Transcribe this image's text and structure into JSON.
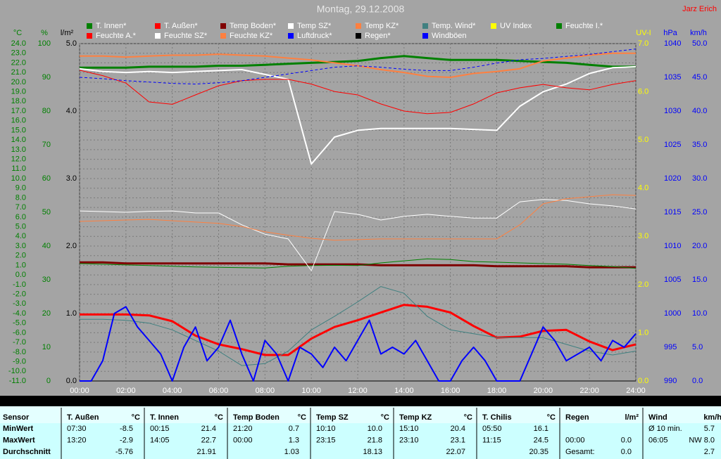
{
  "chart_data": {
    "type": "line",
    "title": "Montag, 29.12.2008",
    "author": "Jarz Erich",
    "grid": true,
    "xlim": [
      0,
      24
    ],
    "xticks": [
      {
        "value": 0,
        "label": "00:00"
      },
      {
        "value": 2,
        "label": "02:00"
      },
      {
        "value": 4,
        "label": "04:00"
      },
      {
        "value": 6,
        "label": "06:00"
      },
      {
        "value": 8,
        "label": "08:00"
      },
      {
        "value": 10,
        "label": "10:00"
      },
      {
        "value": 12,
        "label": "12:00"
      },
      {
        "value": 14,
        "label": "14:00"
      },
      {
        "value": 16,
        "label": "16:00"
      },
      {
        "value": 18,
        "label": "18:00"
      },
      {
        "value": 20,
        "label": "20:00"
      },
      {
        "value": 22,
        "label": "22:00"
      },
      {
        "value": 24,
        "label": "24:00"
      }
    ],
    "x": [
      0,
      1,
      2,
      3,
      4,
      5,
      6,
      7,
      8,
      9,
      10,
      11,
      12,
      13,
      14,
      15,
      16,
      17,
      18,
      19,
      20,
      21,
      22,
      23,
      24
    ],
    "axes": [
      {
        "id": "c",
        "label": "°C",
        "color": "#008000",
        "lim": [
          -11,
          24
        ],
        "ticks": [
          {
            "value": 24,
            "label": "24.0"
          },
          {
            "value": 23,
            "label": "23.0"
          },
          {
            "value": 22,
            "label": "22.0"
          },
          {
            "value": 21,
            "label": "21.0"
          },
          {
            "value": 20,
            "label": "20.0"
          },
          {
            "value": 19,
            "label": "19.0"
          },
          {
            "value": 18,
            "label": "18.0"
          },
          {
            "value": 17,
            "label": "17.0"
          },
          {
            "value": 16,
            "label": "16.0"
          },
          {
            "value": 15,
            "label": "15.0"
          },
          {
            "value": 14,
            "label": "14.0"
          },
          {
            "value": 13,
            "label": "13.0"
          },
          {
            "value": 12,
            "label": "12.0"
          },
          {
            "value": 11,
            "label": "11.0"
          },
          {
            "value": 10,
            "label": "10.0"
          },
          {
            "value": 9,
            "label": "9.0"
          },
          {
            "value": 8,
            "label": "8.0"
          },
          {
            "value": 7,
            "label": "7.0"
          },
          {
            "value": 6,
            "label": "6.0"
          },
          {
            "value": 5,
            "label": "5.0"
          },
          {
            "value": 4,
            "label": "4.0"
          },
          {
            "value": 3,
            "label": "3.0"
          },
          {
            "value": 2,
            "label": "2.0"
          },
          {
            "value": 1,
            "label": "1.0"
          },
          {
            "value": 0,
            "label": "0.0"
          },
          {
            "value": -1,
            "label": "-1.0"
          },
          {
            "value": -2,
            "label": "-2.0"
          },
          {
            "value": -3,
            "label": "-3.0"
          },
          {
            "value": -4,
            "label": "-4.0"
          },
          {
            "value": -5,
            "label": "-5.0"
          },
          {
            "value": -6,
            "label": "-6.0"
          },
          {
            "value": -7,
            "label": "-7.0"
          },
          {
            "value": -8,
            "label": "-8.0"
          },
          {
            "value": -9,
            "label": "-9.0"
          },
          {
            "value": -10,
            "label": "-10.0"
          },
          {
            "value": -11,
            "label": "-11.0"
          }
        ]
      },
      {
        "id": "p",
        "label": "%",
        "color": "#008000",
        "lim": [
          0,
          100
        ],
        "ticks": [
          100,
          90,
          80,
          70,
          60,
          50,
          40,
          30,
          20,
          10,
          0
        ]
      },
      {
        "id": "r",
        "label": "l/m²",
        "color": "#000000",
        "lim": [
          0,
          5
        ],
        "ticks": [
          {
            "value": 5,
            "label": "5.0"
          },
          {
            "value": 4,
            "label": "4.0"
          },
          {
            "value": 3,
            "label": "3.0"
          },
          {
            "value": 2,
            "label": "2.0"
          },
          {
            "value": 1,
            "label": "1.0"
          },
          {
            "value": 0,
            "label": "0.0"
          }
        ]
      },
      {
        "id": "u",
        "label": "UV-I",
        "color": "#ffff00",
        "lim": [
          0,
          7
        ],
        "ticks": [
          {
            "value": 7,
            "label": "7.0"
          },
          {
            "value": 6,
            "label": "6.0"
          },
          {
            "value": 5,
            "label": "5.0"
          },
          {
            "value": 4,
            "label": "4.0"
          },
          {
            "value": 3,
            "label": "3.0"
          },
          {
            "value": 2,
            "label": "2.0"
          },
          {
            "value": 1,
            "label": "1.0"
          },
          {
            "value": 0,
            "label": "0.0"
          }
        ]
      },
      {
        "id": "h",
        "label": "hPa",
        "color": "#0000ff",
        "lim": [
          990,
          1040
        ],
        "ticks": [
          1040,
          1035,
          1030,
          1025,
          1020,
          1015,
          1010,
          1005,
          1000,
          995,
          990
        ]
      },
      {
        "id": "k",
        "label": "km/h",
        "color": "#0000ff",
        "lim": [
          0,
          50
        ],
        "ticks": [
          {
            "value": 50,
            "label": "50.0"
          },
          {
            "value": 45,
            "label": "45.0"
          },
          {
            "value": 40,
            "label": "40.0"
          },
          {
            "value": 35,
            "label": "35.0"
          },
          {
            "value": 30,
            "label": "30.0"
          },
          {
            "value": 25,
            "label": "25.0"
          },
          {
            "value": 20,
            "label": "20.0"
          },
          {
            "value": 15,
            "label": "15.0"
          },
          {
            "value": 10,
            "label": "10.0"
          },
          {
            "value": 5,
            "label": "5.0"
          },
          {
            "value": 0,
            "label": "0.0"
          }
        ]
      }
    ],
    "series": [
      {
        "name": "T. Innen*",
        "color": "#008000",
        "axis": "c",
        "width": 3,
        "values": [
          21.5,
          21.5,
          21.5,
          21.6,
          21.6,
          21.6,
          21.7,
          21.7,
          21.8,
          21.9,
          22.0,
          22.1,
          22.2,
          22.5,
          22.7,
          22.5,
          22.3,
          22.3,
          22.3,
          22.2,
          22.1,
          22.0,
          21.8,
          21.6,
          21.6
        ]
      },
      {
        "name": "T. Außen*",
        "color": "#ff0000",
        "axis": "c",
        "width": 3,
        "values": [
          -4.1,
          -4.1,
          -4.1,
          -4.2,
          -4.8,
          -6.3,
          -7.2,
          -7.7,
          -8.3,
          -8.3,
          -6.6,
          -5.4,
          -4.7,
          -3.9,
          -3.1,
          -3.3,
          -3.9,
          -5.3,
          -6.5,
          -6.4,
          -5.8,
          -5.7,
          -6.9,
          -7.8,
          -7.2
        ]
      },
      {
        "name": "Temp Boden*",
        "color": "#800000",
        "axis": "c",
        "width": 3,
        "values": [
          1.3,
          1.3,
          1.2,
          1.2,
          1.2,
          1.2,
          1.2,
          1.2,
          1.2,
          1.1,
          1.1,
          1.1,
          1.1,
          1.0,
          1.0,
          1.0,
          1.0,
          1.0,
          0.9,
          0.9,
          0.9,
          0.9,
          0.8,
          0.8,
          0.8
        ]
      },
      {
        "name": "Temp SZ*",
        "color": "#ffffff",
        "axis": "c",
        "width": 2,
        "values": [
          21.4,
          21.1,
          21.0,
          21.1,
          21.0,
          21.1,
          21.2,
          21.3,
          20.8,
          20.3,
          11.5,
          14.3,
          15.0,
          15.2,
          15.2,
          15.2,
          15.2,
          15.1,
          15.0,
          17.5,
          19.0,
          19.8,
          20.9,
          21.5,
          21.6
        ]
      },
      {
        "name": "Temp KZ*",
        "color": "#ff8040",
        "axis": "c",
        "width": 2,
        "values": [
          22.7,
          22.7,
          22.6,
          22.7,
          22.8,
          22.8,
          22.9,
          22.8,
          22.7,
          22.5,
          22.3,
          22.0,
          21.7,
          21.3,
          21.0,
          20.6,
          20.5,
          20.9,
          21.1,
          21.4,
          22.2,
          22.5,
          22.8,
          23.0,
          23.0
        ]
      },
      {
        "name": "Temp. Wind*",
        "color": "#408080",
        "axis": "c",
        "width": 1,
        "values": [
          -4.6,
          -4.6,
          -4.7,
          -5.0,
          -5.7,
          -6.8,
          -7.9,
          -9.4,
          -9.2,
          -7.9,
          -5.7,
          -4.3,
          -2.8,
          -1.2,
          -1.9,
          -4.3,
          -5.7,
          -6.1,
          -6.5,
          -6.5,
          -6.5,
          -7.2,
          -7.9,
          -8.3,
          -7.9
        ]
      },
      {
        "name": "UV Index",
        "color": "#ffff00",
        "axis": "u",
        "width": 1,
        "values": [
          0,
          0,
          0,
          0,
          0,
          0,
          0,
          0,
          0,
          0,
          0,
          0,
          0,
          0,
          0,
          0,
          0,
          0,
          0,
          0,
          0,
          0,
          0,
          0,
          0
        ]
      },
      {
        "name": "Feuchte I.*",
        "color": "#008000",
        "axis": "p",
        "width": 1,
        "values": [
          34.8,
          34.6,
          34.4,
          34.2,
          34.0,
          33.8,
          33.7,
          33.6,
          33.5,
          34.0,
          34.2,
          34.3,
          34.2,
          35.0,
          35.6,
          36.2,
          36.0,
          35.4,
          35.2,
          35.0,
          34.8,
          34.6,
          34.2,
          33.9,
          33.4
        ]
      },
      {
        "name": "Feuchte A.*",
        "color": "#ff0000",
        "axis": "p",
        "width": 1,
        "values": [
          92.1,
          90.5,
          88.3,
          82.7,
          82.0,
          84.8,
          87.5,
          89.0,
          89.4,
          89.4,
          88.0,
          85.8,
          84.8,
          82.1,
          80.0,
          79.2,
          79.6,
          82.1,
          85.4,
          86.9,
          87.9,
          86.9,
          86.3,
          87.9,
          89.0
        ]
      },
      {
        "name": "Feuchte SZ*",
        "color": "#ffffff",
        "axis": "p",
        "width": 1,
        "values": [
          50.4,
          50.2,
          50.0,
          50.3,
          50.4,
          49.8,
          49.8,
          46.3,
          43.5,
          42.1,
          32.7,
          50.2,
          49.4,
          47.7,
          48.8,
          49.4,
          48.8,
          48.3,
          48.3,
          53.1,
          53.8,
          53.5,
          52.5,
          51.9,
          51.0
        ]
      },
      {
        "name": "Feuchte KZ*",
        "color": "#ff8040",
        "axis": "p",
        "width": 1,
        "values": [
          47.3,
          47.5,
          47.7,
          47.9,
          47.5,
          47.1,
          46.7,
          45.8,
          44.2,
          43.2,
          42.3,
          41.7,
          41.9,
          42.1,
          42.1,
          42.1,
          42.1,
          42.1,
          42.1,
          46.3,
          52.5,
          54.0,
          54.6,
          55.2,
          55.0
        ]
      },
      {
        "name": "Luftdruck*",
        "color": "#0000ff",
        "axis": "h",
        "width": 1,
        "dash": true,
        "values": [
          1035.0,
          1034.8,
          1034.5,
          1034.3,
          1034.1,
          1034.0,
          1034.2,
          1034.5,
          1035.0,
          1035.5,
          1036.0,
          1036.5,
          1036.7,
          1036.5,
          1036.2,
          1036.0,
          1036.0,
          1036.5,
          1037.1,
          1037.6,
          1037.8,
          1038.1,
          1038.4,
          1038.8,
          1039.2
        ]
      },
      {
        "name": "Regen*",
        "color": "#000000",
        "axis": "r",
        "width": 1,
        "values": [
          0,
          0,
          0,
          0,
          0,
          0,
          0,
          0,
          0,
          0,
          0,
          0,
          0,
          0,
          0,
          0,
          0,
          0,
          0,
          0,
          0,
          0,
          0,
          0,
          0
        ]
      },
      {
        "name": "Windböen",
        "color": "#0000ff",
        "axis": "k",
        "width": 2,
        "x": [
          0,
          0.5,
          1,
          1.5,
          2,
          2.5,
          3,
          3.5,
          4,
          4.5,
          5,
          5.5,
          6,
          6.5,
          7,
          7.5,
          8,
          8.5,
          9,
          9.5,
          10,
          10.5,
          11,
          11.5,
          12,
          12.5,
          13,
          13.5,
          14,
          14.5,
          15,
          15.5,
          16,
          16.5,
          17,
          17.5,
          18,
          18.5,
          19,
          19.5,
          20,
          20.5,
          21,
          21.5,
          22,
          22.5,
          23,
          23.5,
          24
        ],
        "values": [
          0,
          0,
          3,
          10,
          11,
          8,
          6,
          4,
          0,
          5,
          8,
          3,
          5,
          9,
          4,
          0,
          6,
          4,
          0,
          5,
          4,
          2,
          5,
          3,
          6,
          9,
          4,
          5,
          4,
          6,
          3,
          0,
          0,
          3,
          5,
          3,
          0,
          0,
          0,
          4,
          8,
          6,
          3,
          4,
          5,
          3,
          6,
          5,
          7
        ]
      }
    ]
  },
  "table": {
    "sensor_label": "Sensor",
    "row_labels": [
      "MinWert",
      "MaxWert",
      "Durchschnitt"
    ],
    "columns": [
      {
        "name": "T. Außen",
        "unit": "°C",
        "rows": [
          [
            "07:30",
            "-8.5"
          ],
          [
            "13:20",
            "-2.9"
          ],
          [
            null,
            "-5.76"
          ]
        ]
      },
      {
        "name": "T. Innen",
        "unit": "°C",
        "rows": [
          [
            "00:15",
            "21.4"
          ],
          [
            "14:05",
            "22.7"
          ],
          [
            null,
            "21.91"
          ]
        ]
      },
      {
        "name": "Temp Boden",
        "unit": "°C",
        "rows": [
          [
            "21:20",
            "0.7"
          ],
          [
            "00:00",
            "1.3"
          ],
          [
            null,
            "1.03"
          ]
        ]
      },
      {
        "name": "Temp SZ",
        "unit": "°C",
        "rows": [
          [
            "10:10",
            "10.0"
          ],
          [
            "23:15",
            "21.8"
          ],
          [
            null,
            "18.13"
          ]
        ]
      },
      {
        "name": "Temp KZ",
        "unit": "°C",
        "rows": [
          [
            "15:10",
            "20.4"
          ],
          [
            "23:10",
            "23.1"
          ],
          [
            null,
            "22.07"
          ]
        ]
      },
      {
        "name": "T. Chilis",
        "unit": "°C",
        "rows": [
          [
            "05:50",
            "16.1"
          ],
          [
            "11:15",
            "24.5"
          ],
          [
            null,
            "20.35"
          ]
        ]
      },
      {
        "name": "Regen",
        "unit": "l/m²",
        "rows": [
          null,
          [
            "00:00",
            "0.0"
          ],
          [
            "Gesamt:",
            "0.0"
          ]
        ]
      },
      {
        "name": "Wind",
        "unit": "km/h",
        "rows": [
          [
            "Ø 10 min.",
            "5.7"
          ],
          [
            "06:05",
            "NW 8.0"
          ],
          [
            null,
            "2.7"
          ]
        ]
      }
    ]
  }
}
